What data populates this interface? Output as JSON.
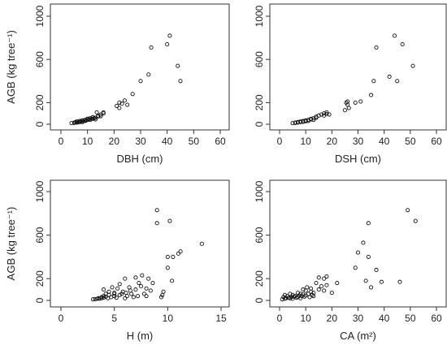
{
  "chart_data": [
    {
      "type": "scatter",
      "xlabel": "DBH (cm)",
      "ylabel": "AGB (kg tree⁻¹)",
      "xlim": [
        0,
        60
      ],
      "ylim": [
        0,
        1000
      ],
      "xticks": [
        "0",
        "10",
        "20",
        "30",
        "40",
        "50",
        "60"
      ],
      "yticks": [
        "0",
        "200",
        "600",
        "1000"
      ],
      "x": [
        4,
        5,
        5,
        5.5,
        6,
        6,
        6.5,
        7,
        7,
        7.5,
        8,
        8,
        8.5,
        9,
        9,
        9.5,
        10,
        10,
        10.5,
        11,
        11,
        11.5,
        12,
        12,
        12.5,
        13,
        13,
        13.5,
        14,
        14,
        15,
        15,
        16,
        16,
        21,
        22,
        22,
        23,
        24,
        25,
        27,
        30,
        33,
        34,
        40,
        41,
        44,
        45
      ],
      "y": [
        10,
        15,
        12,
        20,
        15,
        25,
        18,
        20,
        30,
        25,
        20,
        35,
        28,
        30,
        40,
        35,
        40,
        50,
        45,
        40,
        55,
        50,
        50,
        65,
        55,
        60,
        45,
        110,
        80,
        70,
        90,
        75,
        110,
        100,
        170,
        150,
        200,
        190,
        220,
        180,
        280,
        400,
        460,
        710,
        740,
        820,
        540,
        400
      ]
    },
    {
      "type": "scatter",
      "xlabel": "DSH (cm)",
      "ylabel": "",
      "xlim": [
        0,
        60
      ],
      "ylim": [
        0,
        1000
      ],
      "xticks": [
        "0",
        "10",
        "20",
        "30",
        "40",
        "50",
        "60"
      ],
      "yticks": [
        "0",
        "200",
        "600",
        "1000"
      ],
      "x": [
        5,
        6,
        6,
        7,
        7,
        8,
        8,
        9,
        9,
        10,
        10,
        11,
        11,
        12,
        12,
        13,
        13,
        14,
        14,
        15,
        16,
        17,
        17,
        18,
        18,
        19,
        25,
        25.5,
        26,
        26,
        26.5,
        29,
        31,
        35,
        36,
        37,
        42,
        44,
        45,
        47,
        51
      ],
      "y": [
        10,
        15,
        12,
        20,
        15,
        25,
        20,
        30,
        22,
        35,
        28,
        40,
        30,
        45,
        50,
        55,
        40,
        70,
        60,
        80,
        90,
        100,
        80,
        110,
        95,
        90,
        130,
        200,
        180,
        210,
        150,
        200,
        210,
        270,
        400,
        710,
        440,
        820,
        400,
        740,
        540
      ]
    },
    {
      "type": "scatter",
      "xlabel": "H (m)",
      "ylabel": "AGB (kg tree⁻¹)",
      "xlim": [
        0,
        15
      ],
      "ylim": [
        0,
        1000
      ],
      "xticks": [
        "0",
        "5",
        "10",
        "15"
      ],
      "yticks": [
        "0",
        "200",
        "600",
        "1000"
      ],
      "x": [
        3,
        3.2,
        3.4,
        3.5,
        3.6,
        3.8,
        3.8,
        4,
        4,
        4,
        4.2,
        4.2,
        4.4,
        4.5,
        4.5,
        4.7,
        4.8,
        5,
        5,
        5,
        5.2,
        5.3,
        5.5,
        5.5,
        5.7,
        5.8,
        6,
        6,
        6.1,
        6.2,
        6.4,
        6.5,
        6.6,
        6.8,
        7,
        7,
        7.2,
        7.3,
        7.5,
        7.6,
        7.8,
        8,
        8,
        8.2,
        8.4,
        8.6,
        9,
        9,
        9.4,
        9.5,
        9.6,
        10,
        10,
        10.2,
        10.4,
        10.5,
        11,
        11.2,
        13.2
      ],
      "y": [
        10,
        12,
        15,
        20,
        15,
        20,
        30,
        25,
        40,
        100,
        35,
        60,
        20,
        50,
        80,
        30,
        120,
        40,
        60,
        70,
        25,
        110,
        50,
        150,
        60,
        80,
        200,
        20,
        70,
        40,
        120,
        90,
        60,
        30,
        210,
        100,
        40,
        160,
        130,
        230,
        60,
        40,
        110,
        200,
        90,
        160,
        830,
        710,
        30,
        50,
        80,
        400,
        300,
        730,
        180,
        400,
        430,
        450,
        520
      ]
    },
    {
      "type": "scatter",
      "xlabel": "CA (m²)",
      "ylabel": "",
      "xlim": [
        0,
        60
      ],
      "ylim": [
        0,
        1000
      ],
      "xticks": [
        "0",
        "10",
        "20",
        "30",
        "40",
        "50",
        "60"
      ],
      "yticks": [
        "0",
        "200",
        "600",
        "1000"
      ],
      "x": [
        1,
        1.5,
        2,
        2,
        2.5,
        3,
        3.5,
        4,
        4,
        4.5,
        5,
        5,
        5.5,
        6,
        6.5,
        7,
        7,
        7.5,
        8,
        8,
        8.5,
        9,
        9,
        9.5,
        10,
        10,
        10.5,
        11,
        11.5,
        12,
        12,
        12.5,
        13,
        13,
        14,
        15,
        15,
        16,
        17,
        17,
        18,
        18,
        20,
        22,
        29,
        30,
        32,
        33,
        34,
        34,
        35,
        37,
        39,
        46,
        49,
        52
      ],
      "y": [
        10,
        30,
        50,
        15,
        20,
        40,
        25,
        60,
        20,
        30,
        50,
        15,
        35,
        40,
        25,
        70,
        30,
        45,
        60,
        20,
        40,
        100,
        55,
        35,
        90,
        45,
        120,
        60,
        30,
        80,
        110,
        50,
        70,
        40,
        160,
        210,
        100,
        130,
        90,
        200,
        140,
        220,
        70,
        160,
        300,
        440,
        530,
        180,
        710,
        400,
        120,
        280,
        170,
        170,
        830,
        730
      ]
    }
  ]
}
